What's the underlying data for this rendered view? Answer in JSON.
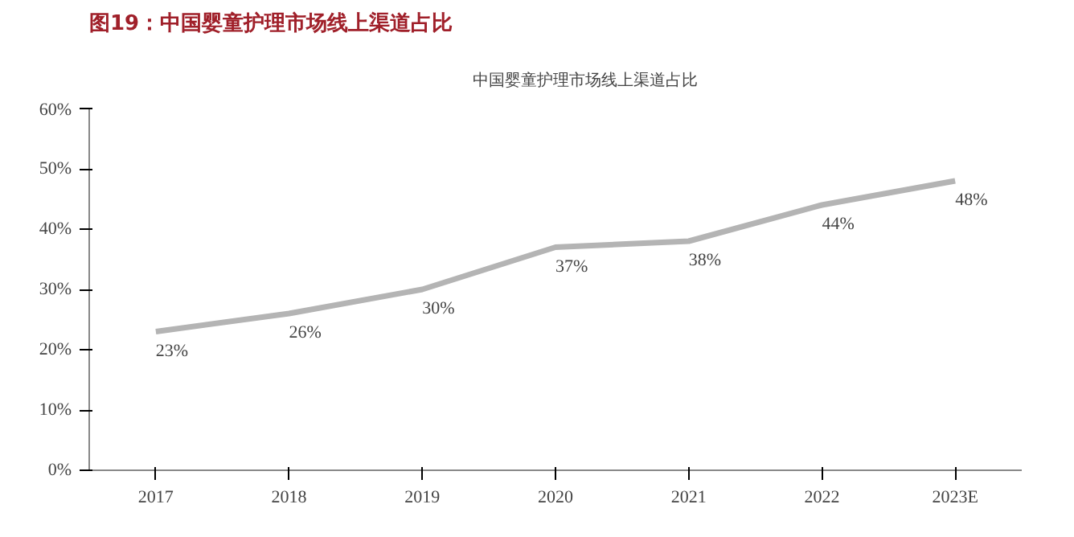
{
  "chart_data": {
    "type": "line",
    "title": "图19：中国婴童护理市场线上渠道占比",
    "categories": [
      "2017",
      "2018",
      "2019",
      "2020",
      "2021",
      "2022",
      "2023E"
    ],
    "series": [
      {
        "name": "中国婴童护理市场线上渠道占比",
        "color": "#b4b4b4",
        "values": [
          23,
          26,
          30,
          37,
          38,
          44,
          48
        ],
        "value_labels": [
          "23%",
          "26%",
          "30%",
          "37%",
          "38%",
          "44%",
          "48%"
        ]
      }
    ],
    "ylim": [
      0,
      60
    ],
    "yticks": [
      {
        "value": 0,
        "label": "0%"
      },
      {
        "value": 10,
        "label": "10%"
      },
      {
        "value": 20,
        "label": "20%"
      },
      {
        "value": 30,
        "label": "30%"
      },
      {
        "value": 40,
        "label": "40%"
      },
      {
        "value": 50,
        "label": "50%"
      },
      {
        "value": 60,
        "label": "60%"
      }
    ],
    "grid": false,
    "legend": "top",
    "marker": "none",
    "line_style": "solid"
  }
}
